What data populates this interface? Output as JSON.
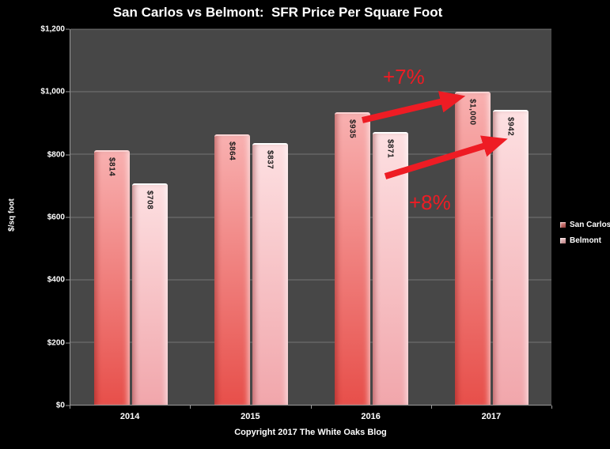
{
  "title": "San Carlos vs Belmont:  SFR Price Per Square Foot",
  "footer": {
    "copyright": "Copyright 2017 The White Oaks Blog"
  },
  "colors": {
    "page_bg": "#000000",
    "plot_bg": "#474747",
    "gridline": "#757575",
    "axis": "#9a9a9a",
    "text": "#ffffff",
    "bar_label": "#1c1c1c",
    "accent_red": "#ee1c24"
  },
  "chart_data": {
    "type": "bar",
    "title": "San Carlos vs Belmont:  SFR Price Per Square Foot",
    "xlabel": "",
    "ylabel": "$/sq foot",
    "ylim": [
      0,
      1200
    ],
    "grid": true,
    "legend_position": "right",
    "categories": [
      "2014",
      "2015",
      "2016",
      "2017"
    ],
    "yticks": [
      {
        "value": 0,
        "label": "$0"
      },
      {
        "value": 200,
        "label": "$200"
      },
      {
        "value": 400,
        "label": "$400"
      },
      {
        "value": 600,
        "label": "$600"
      },
      {
        "value": 800,
        "label": "$800"
      },
      {
        "value": 1000,
        "label": "$1,000"
      },
      {
        "value": 1200,
        "label": "$1,200"
      }
    ],
    "series": [
      {
        "name": "San Carlos",
        "values": [
          814,
          864,
          935,
          1000
        ],
        "labels": [
          "$814",
          "$864",
          "$935",
          "$1,000"
        ],
        "color_top": "#f8b0b0",
        "color_bottom": "#e74f4a",
        "highlight": "#fbd3d3",
        "legend_color_top": "#e89a98",
        "legend_color_bottom": "#993e3c"
      },
      {
        "name": "Belmont",
        "values": [
          708,
          837,
          871,
          942
        ],
        "labels": [
          "$708",
          "$837",
          "$871",
          "$942"
        ],
        "color_top": "#fde0e2",
        "color_bottom": "#f1a6ab",
        "highlight": "#ffffff",
        "legend_color_top": "#f7d4d6",
        "legend_color_bottom": "#b97f82"
      }
    ],
    "annotations": [
      {
        "text": "+7%",
        "note": "increase San Carlos 2016 to 2017"
      },
      {
        "text": "+8%",
        "note": "increase Belmont 2016 to 2017"
      }
    ]
  }
}
